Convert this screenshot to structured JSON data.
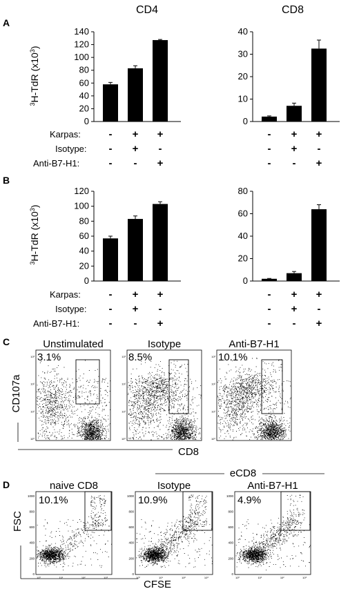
{
  "column_titles": [
    "CD4",
    "CD8"
  ],
  "panel_labels": [
    "A",
    "B",
    "C",
    "D"
  ],
  "bar_panels": {
    "ylabel_main": "H-TdR (x10",
    "ylabel_sup": "3",
    "ylabel_exp": "3",
    "ylabel_close": ")",
    "condition_labels": [
      "Karpas:",
      "Isotype:",
      "Anti-B7-H1:"
    ],
    "condition_rows": [
      [
        "-",
        "+",
        "+"
      ],
      [
        "-",
        "+",
        "-"
      ],
      [
        "-",
        "-",
        "+"
      ]
    ]
  },
  "chart_data": [
    {
      "type": "bar",
      "panel": "A",
      "title": "CD4",
      "ylabel": "3H-TdR (x10^3)",
      "ylim": [
        0,
        140
      ],
      "yticks": [
        0,
        20,
        40,
        60,
        80,
        100,
        120,
        140
      ],
      "values": [
        58,
        83,
        127
      ],
      "errors": [
        3,
        4,
        1
      ]
    },
    {
      "type": "bar",
      "panel": "A",
      "title": "CD8",
      "ylabel": "",
      "ylim": [
        0,
        40
      ],
      "yticks": [
        0,
        10,
        20,
        30,
        40
      ],
      "values": [
        2.2,
        7,
        32.5
      ],
      "errors": [
        0.3,
        1.2,
        3.8
      ]
    },
    {
      "type": "bar",
      "panel": "B",
      "title": "",
      "ylabel": "3H-TdR (x10^3)",
      "ylim": [
        0,
        120
      ],
      "yticks": [
        0,
        20,
        40,
        60,
        80,
        100,
        120
      ],
      "values": [
        57,
        83,
        103
      ],
      "errors": [
        3,
        4,
        3
      ]
    },
    {
      "type": "bar",
      "panel": "B",
      "title": "",
      "ylabel": "",
      "ylim": [
        0,
        80
      ],
      "yticks": [
        0,
        20,
        40,
        60,
        80
      ],
      "values": [
        2,
        7,
        64
      ],
      "errors": [
        0.3,
        1.5,
        4
      ]
    }
  ],
  "flow_c": {
    "ylabel": "CD107a",
    "xlabel": "CD8",
    "plots": [
      {
        "title": "Unstimulated",
        "percent": "3.1%"
      },
      {
        "title": "Isotype",
        "percent": "8.5%"
      },
      {
        "title": "Anti-B7-H1",
        "percent": "10.1%"
      }
    ],
    "log_ticks": [
      "10⁰",
      "10¹",
      "10²",
      "10³"
    ]
  },
  "flow_d": {
    "ylabel": "FSC",
    "xlabel": "CFSE",
    "group_label": "eCD8",
    "plots": [
      {
        "title": "naive CD8",
        "percent": "10.1%"
      },
      {
        "title": "Isotype",
        "percent": "10.9%"
      },
      {
        "title": "Anti-B7-H1",
        "percent": "4.9%"
      }
    ],
    "yticks": [
      "0",
      "200",
      "400",
      "600",
      "800",
      "1000"
    ],
    "log_ticks": [
      "10⁰",
      "10¹",
      "10²",
      "10³"
    ]
  }
}
